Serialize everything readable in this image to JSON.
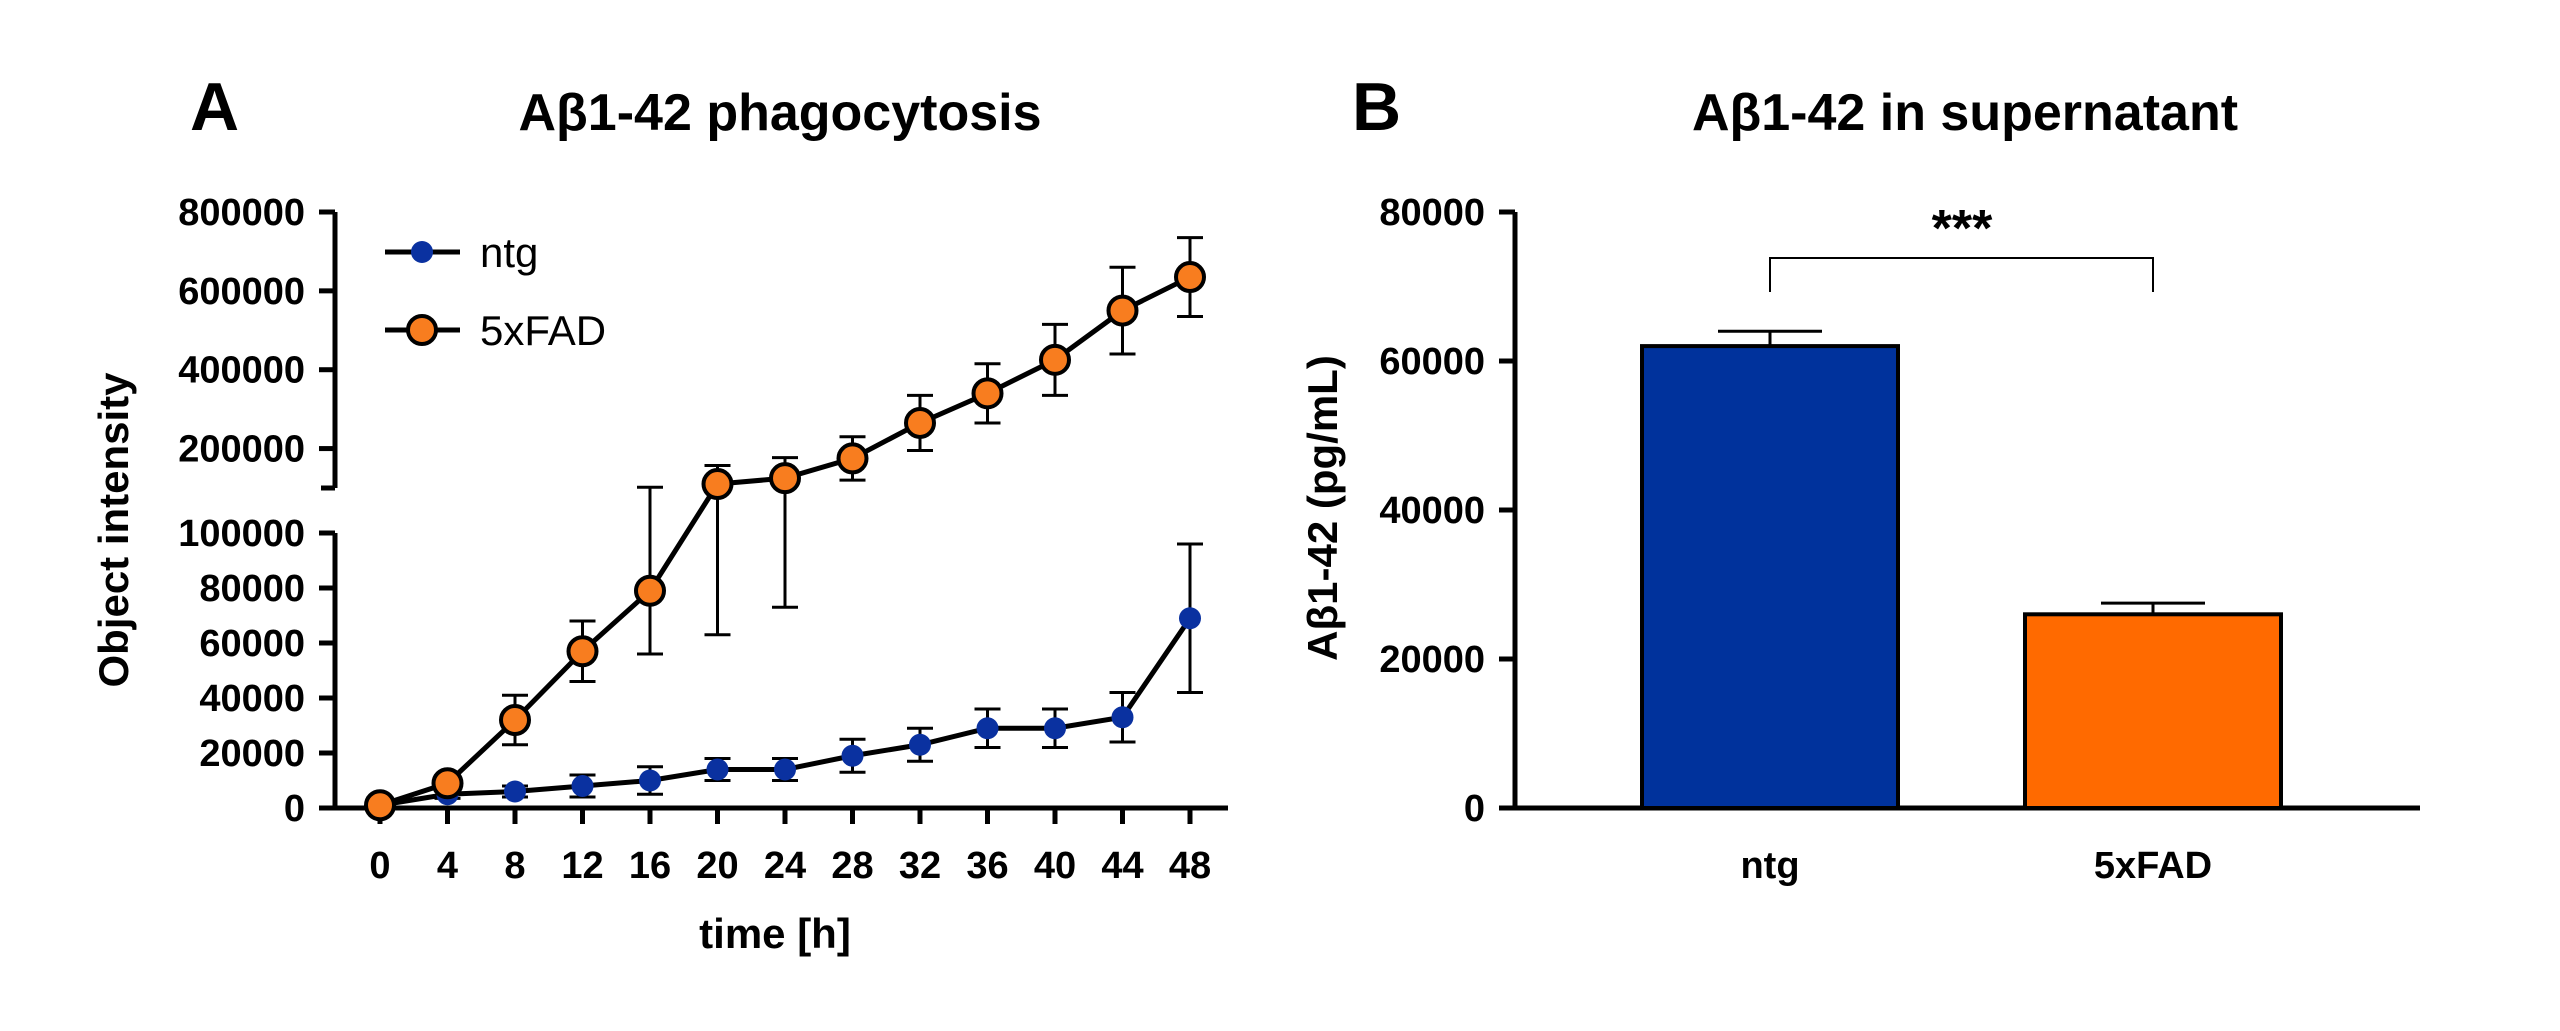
{
  "chart_data": [
    {
      "panel": "A",
      "type": "line",
      "title": "Aβ1-42 phagocytosis",
      "xlabel": "time [h]",
      "ylabel": "Object intensity",
      "x": [
        0,
        4,
        8,
        12,
        16,
        20,
        24,
        28,
        32,
        36,
        40,
        44,
        48
      ],
      "x_ticks": [
        "0",
        "4",
        "8",
        "12",
        "16",
        "20",
        "24",
        "28",
        "32",
        "36",
        "40",
        "44",
        "48"
      ],
      "y_lower_ticks": [
        "0",
        "20000",
        "40000",
        "60000",
        "80000",
        "100000"
      ],
      "y_upper_ticks": [
        "200000",
        "400000",
        "600000",
        "800000"
      ],
      "y_lower_range": [
        0,
        100000
      ],
      "y_upper_range": [
        100000,
        800000
      ],
      "legend_position": "top-left",
      "series": [
        {
          "name": "ntg",
          "color": "#0A31A0",
          "values": [
            1000,
            5000,
            6000,
            8000,
            10000,
            14000,
            14000,
            19000,
            23000,
            29000,
            29000,
            33000,
            69000
          ],
          "errors": [
            500,
            1500,
            2000,
            4000,
            5000,
            4000,
            4000,
            6000,
            6000,
            7000,
            7000,
            9000,
            27000
          ]
        },
        {
          "name": "5xFAD",
          "color": "#F87D1F",
          "values": [
            1000,
            9000,
            32000,
            57000,
            79000,
            110000,
            125000,
            175000,
            265000,
            340000,
            425000,
            550000,
            635000
          ],
          "errors": [
            500,
            2000,
            9000,
            11000,
            23000,
            47000,
            52000,
            55000,
            70000,
            75000,
            90000,
            110000,
            100000
          ]
        }
      ]
    },
    {
      "panel": "B",
      "type": "bar",
      "title": "Aβ1-42 in supernatant",
      "xlabel": "",
      "ylabel": "Aβ1-42 (pg/mL)",
      "categories": [
        "ntg",
        "5xFAD"
      ],
      "values": [
        62000,
        26000
      ],
      "errors": [
        2000,
        1500
      ],
      "colors": [
        "#00329C",
        "#FF6A00"
      ],
      "ylim": [
        0,
        80000
      ],
      "y_ticks": [
        "0",
        "20000",
        "40000",
        "60000",
        "80000"
      ],
      "significance": "***"
    }
  ]
}
